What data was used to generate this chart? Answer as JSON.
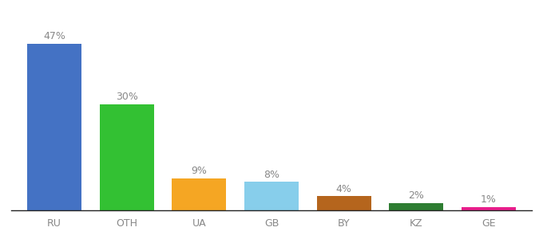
{
  "categories": [
    "RU",
    "OTH",
    "UA",
    "GB",
    "BY",
    "KZ",
    "GE"
  ],
  "values": [
    47,
    30,
    9,
    8,
    4,
    2,
    1
  ],
  "bar_colors": [
    "#4472C4",
    "#33C133",
    "#F5A623",
    "#87CEEB",
    "#B5651D",
    "#2E7D32",
    "#E91E8C"
  ],
  "label_color": "#888888",
  "label_fontsize": 9,
  "xlabel_fontsize": 9,
  "background_color": "#ffffff",
  "ylim": [
    0,
    54
  ],
  "bar_width": 0.75
}
